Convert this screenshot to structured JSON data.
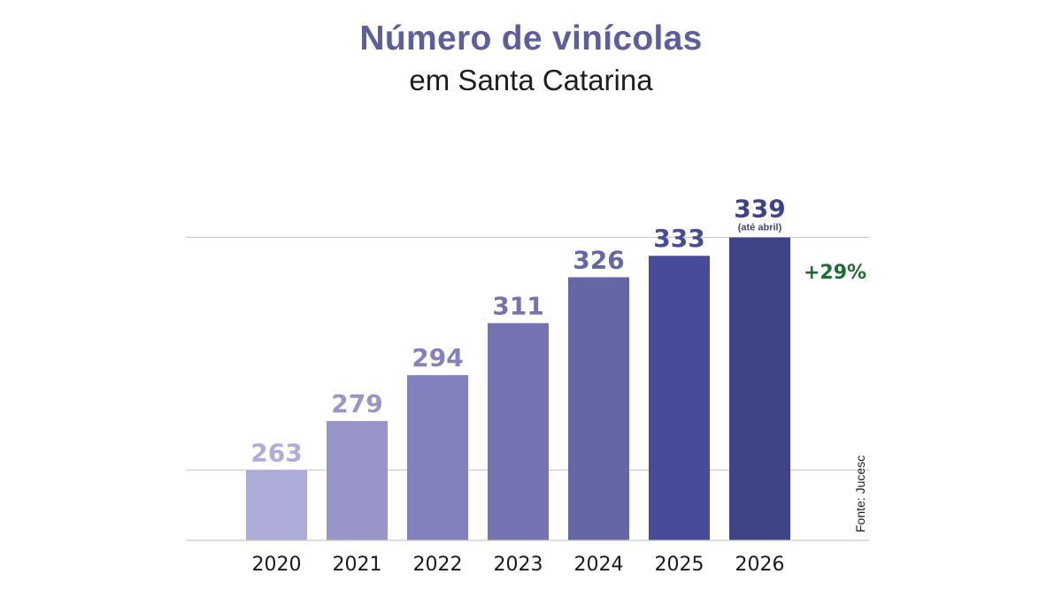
{
  "chart_data": {
    "type": "bar",
    "title": "Número de vinícolas",
    "subtitle": "em Santa Catarina",
    "categories": [
      "2020",
      "2021",
      "2022",
      "2023",
      "2024",
      "2025",
      "2026"
    ],
    "values": [
      263,
      279,
      294,
      311,
      326,
      333,
      339
    ],
    "value_labels": [
      "263",
      "279",
      "294",
      "311",
      "326",
      "333",
      "339"
    ],
    "bar_colors": [
      "#aeacd8",
      "#9895c9",
      "#8381bd",
      "#7673b3",
      "#6466a6",
      "#474c9a",
      "#3f4489"
    ],
    "label_colors": [
      "#aeacd8",
      "#9895c9",
      "#8381bd",
      "#7673b3",
      "#6466a6",
      "#474c9a",
      "#3f4489"
    ],
    "annotations": {
      "last_bar_note": "(até abril)",
      "growth": "+29%",
      "source": "Fonte: Jucesc"
    },
    "gridlines": [
      263,
      339
    ],
    "grid": false,
    "legend": "none"
  }
}
